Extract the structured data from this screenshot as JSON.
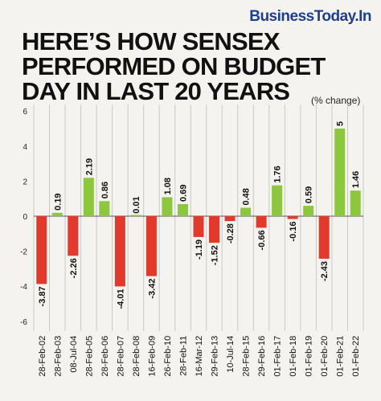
{
  "header": {
    "brand": "BusinessToday.In",
    "title_lines": [
      "HERE’S HOW SENSEX",
      "PERFORMED ON BUDGET",
      "DAY IN LAST 20 YEARS"
    ]
  },
  "chart_data": {
    "type": "bar",
    "title": "HERE’S HOW SENSEX PERFORMED ON BUDGET DAY IN LAST 20 YEARS",
    "unit_label": "(% change)",
    "categories": [
      "28-Feb-02",
      "28-Feb-03",
      "08-Jul-04",
      "28-Feb-05",
      "28-Feb-06",
      "28-Feb-07",
      "28-Feb-08",
      "16-Feb-09",
      "26-Feb-10",
      "28-Feb-11",
      "16-Mar-12",
      "29-Feb-13",
      "10-Jul-14",
      "28-Feb-15",
      "29-Feb-16",
      "01-Feb-17",
      "01-Feb-18",
      "01-Feb-19",
      "01-Feb-20",
      "01-Feb-21",
      "01-Feb-22"
    ],
    "values": [
      -3.87,
      0.19,
      -2.26,
      2.19,
      0.86,
      -4.01,
      0.01,
      -3.42,
      1.08,
      0.69,
      -1.19,
      -1.52,
      -0.28,
      0.48,
      -0.66,
      1.76,
      -0.16,
      0.59,
      -2.43,
      5,
      1.46
    ],
    "value_labels": [
      "-3.87",
      "0.19",
      "-2.26",
      "2.19",
      "0.86",
      "-4.01",
      "0.01",
      "-3.42",
      "1.08",
      "0.69",
      "-1.19",
      "-1.52",
      "-0.28",
      "0.48",
      "-0.66",
      "1.76",
      "-0.16",
      "0.59",
      "-2.43",
      "5",
      "1.46"
    ],
    "yticks": [
      6,
      4,
      2,
      0,
      -2,
      -4,
      -6
    ],
    "ylim": [
      -6,
      6
    ],
    "grid": "vertical separators",
    "colors": {
      "positive": "#8dc63f",
      "negative": "#e2392d",
      "grid": "#c8c8c8",
      "zero": "#555555"
    }
  }
}
